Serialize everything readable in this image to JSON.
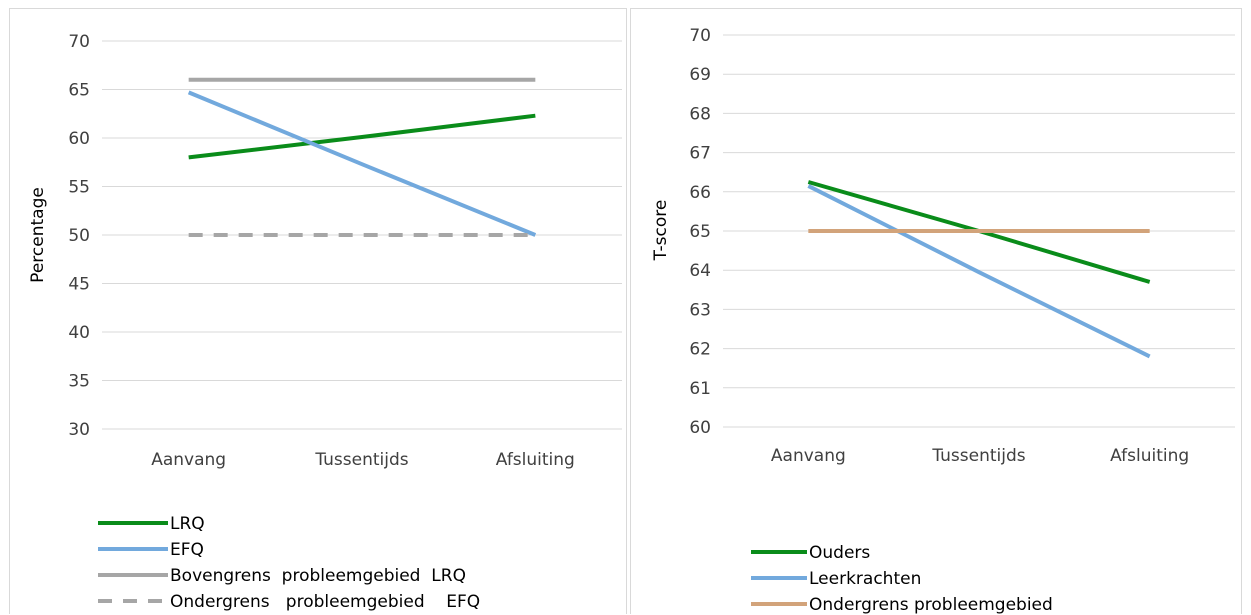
{
  "colors": {
    "green": "#0a8c1a",
    "blue": "#72a9dd",
    "gray": "#a6a6a6",
    "tan": "#d2a37a",
    "grid": "#d9d9d9",
    "tick": "#404040"
  },
  "chart_data": [
    {
      "type": "line",
      "categories": [
        "Aanvang",
        "Tussentijds",
        "Afsluiting"
      ],
      "ylabel": "Percentage",
      "xlabel": "",
      "ylim": [
        30,
        70
      ],
      "ytick_step": 5,
      "yticks": [
        "30",
        "35",
        "40",
        "45",
        "50",
        "55",
        "60",
        "65",
        "70"
      ],
      "grid": true,
      "legend_position": "bottom",
      "series": [
        {
          "name": "LRQ",
          "values": [
            58.0,
            60.1,
            62.3
          ],
          "color": "#0a8c1a",
          "dashed": false
        },
        {
          "name": "EFQ",
          "values": [
            64.7,
            57.3,
            50.0
          ],
          "color": "#72a9dd",
          "dashed": false
        },
        {
          "name": "Bovengrens  probleemgebied  LRQ",
          "values": [
            66.0,
            66.0,
            66.0
          ],
          "color": "#a6a6a6",
          "dashed": false
        },
        {
          "name": "Ondergrens   probleemgebied    EFQ",
          "values": [
            50.0,
            50.0,
            50.0
          ],
          "color": "#a6a6a6",
          "dashed": true
        }
      ]
    },
    {
      "type": "line",
      "categories": [
        "Aanvang",
        "Tussentijds",
        "Afsluiting"
      ],
      "ylabel": "T-score",
      "xlabel": "",
      "ylim": [
        60,
        70
      ],
      "ytick_step": 1,
      "yticks": [
        "60",
        "61",
        "62",
        "63",
        "64",
        "65",
        "66",
        "67",
        "68",
        "69",
        "70"
      ],
      "grid": true,
      "legend_position": "bottom",
      "series": [
        {
          "name": "Ouders",
          "values": [
            66.25,
            65.0,
            63.7
          ],
          "color": "#0a8c1a",
          "dashed": false
        },
        {
          "name": "Leerkrachten",
          "values": [
            66.15,
            63.95,
            61.8
          ],
          "color": "#72a9dd",
          "dashed": false
        },
        {
          "name": "Ondergrens probleemgebied",
          "values": [
            65.0,
            65.0,
            65.0
          ],
          "color": "#d2a37a",
          "dashed": false
        }
      ]
    }
  ]
}
